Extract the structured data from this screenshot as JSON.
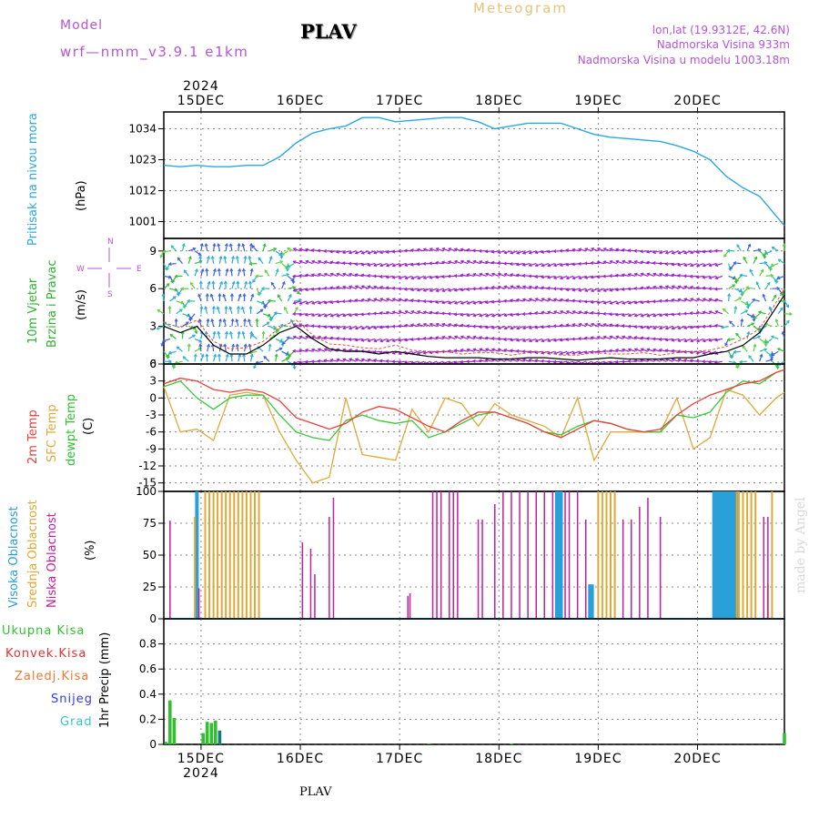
{
  "header": {
    "model_label": "Model",
    "model_run": "wrf—nmm_v3.9.1  e1km",
    "title": "PLAV",
    "meteogram": "Meteogram",
    "lonlat": "lon,lat (19.9312E, 42.6N)",
    "elevation": "Nadmorska Visina 933m",
    "model_elevation": "Nadmorska Visina u modelu 1003.18m"
  },
  "footer_title": "PLAV",
  "watermark": "made by Angel",
  "x_axis": {
    "year": "2024",
    "days": [
      "15DEC",
      "16DEC",
      "17DEC",
      "18DEC",
      "19DEC",
      "20DEC"
    ]
  },
  "panel_labels": {
    "pressure": [
      "Pritisak na nivou mora",
      "(hPa)"
    ],
    "wind": [
      "10m Vjetar",
      "Brzina i Pravac",
      "(m/s)"
    ],
    "compass": [
      "N",
      "W",
      "E",
      "S"
    ],
    "temp": [
      "2m Temp",
      "SFC Temp",
      "dewpt Temp",
      "(C)"
    ],
    "cloud": [
      "Visoka Oblacnost",
      "Srednja Oblacnost",
      "Niska Oblacnost",
      "(%)"
    ],
    "precip_axis": "1hr Precip (mm)",
    "precip_legend": [
      "Ukupna Kisa",
      "Konvek.Kisa",
      "Zaledj.Kisa",
      "Snijeg",
      "Grad"
    ]
  },
  "colors": {
    "pressure": "#2aa8e0",
    "t2m": "#e8403a",
    "tsfc": "#e0a838",
    "dewpt": "#3ac83a",
    "cloud_high": "#2aa0d8",
    "cloud_mid": "#e0a838",
    "cloud_low": "#c020a0",
    "rain_total": "#30c030",
    "rain_conv": "#e83030",
    "freezing_rain": "#f07830",
    "snow": "#3838e0",
    "hail": "#30c8c8"
  },
  "chart_data": [
    {
      "type": "line",
      "name": "pressure",
      "ylim": [
        995,
        1040
      ],
      "yticks": [
        1001,
        1012,
        1023,
        1034
      ],
      "x_hours": [
        0,
        4,
        8,
        12,
        16,
        20,
        24,
        28,
        32,
        36,
        40,
        44,
        48,
        52,
        56,
        60,
        64,
        68,
        72,
        76,
        80,
        84,
        88,
        92,
        96,
        100,
        104,
        108,
        112,
        116,
        120,
        124,
        128,
        132,
        136,
        140,
        144,
        148,
        150
      ],
      "values": [
        1021,
        1020.5,
        1021,
        1020.5,
        1020.5,
        1021,
        1021,
        1024,
        1029,
        1032.5,
        1034,
        1035,
        1038,
        1038,
        1036.5,
        1037,
        1037.5,
        1038,
        1038,
        1036.5,
        1034,
        1035,
        1036,
        1036,
        1036,
        1034,
        1032,
        1031,
        1030.5,
        1030,
        1029.5,
        1028,
        1026,
        1023,
        1017,
        1013,
        1010,
        1003,
        999.5
      ]
    },
    {
      "type": "line",
      "name": "wind_speed",
      "ylim": [
        0,
        10
      ],
      "yticks": [
        0,
        3,
        6,
        9
      ],
      "x_hours": [
        0,
        4,
        8,
        12,
        16,
        20,
        24,
        28,
        32,
        36,
        40,
        44,
        48,
        52,
        56,
        60,
        64,
        68,
        72,
        76,
        80,
        84,
        88,
        92,
        96,
        100,
        104,
        108,
        112,
        116,
        120,
        124,
        128,
        132,
        136,
        140,
        144,
        148,
        150
      ],
      "values": [
        3.0,
        2.5,
        3.0,
        1.5,
        0.8,
        0.8,
        1.5,
        2.5,
        3.0,
        2.0,
        1.2,
        1.0,
        1.0,
        0.8,
        1.0,
        0.8,
        0.6,
        0.5,
        0.5,
        0.5,
        0.4,
        0.4,
        0.5,
        0.5,
        0.4,
        0.3,
        0.4,
        0.5,
        0.4,
        0.4,
        0.4,
        0.5,
        0.5,
        0.8,
        1.0,
        1.5,
        2.5,
        4.5,
        5.5
      ]
    },
    {
      "type": "line",
      "name": "temperature",
      "ylim": [
        -16.5,
        6
      ],
      "yticks": [
        6,
        3,
        0,
        -3,
        -6,
        -9,
        -12,
        -15
      ],
      "x_hours": [
        0,
        4,
        8,
        12,
        16,
        20,
        24,
        28,
        32,
        36,
        40,
        44,
        48,
        52,
        56,
        60,
        64,
        68,
        72,
        76,
        80,
        84,
        88,
        92,
        96,
        100,
        104,
        108,
        112,
        116,
        120,
        124,
        128,
        132,
        136,
        140,
        144,
        148,
        150
      ],
      "series": [
        {
          "name": "2m Temp",
          "values": [
            2.5,
            3.5,
            3.0,
            1.5,
            1.0,
            1.5,
            1.0,
            -0.5,
            -3.5,
            -4.5,
            -5.5,
            -4.5,
            -2.5,
            -1.5,
            -2.0,
            -3.5,
            -5.0,
            -6.0,
            -4.0,
            -2.5,
            -2.5,
            -3.5,
            -4.5,
            -6.0,
            -7.0,
            -5.5,
            -4.0,
            -4.5,
            -5.5,
            -6.0,
            -5.5,
            -3.0,
            -1.0,
            0.5,
            1.5,
            2.5,
            3.0,
            4.5,
            5.0
          ]
        },
        {
          "name": "SFC Temp",
          "values": [
            2.0,
            -6.0,
            -5.5,
            -7.5,
            0.5,
            1.0,
            0.5,
            -6.0,
            -11.0,
            -15.0,
            -14.0,
            0.0,
            -10.0,
            -10.5,
            -11.0,
            -2.0,
            -6.0,
            0.0,
            -1.0,
            -5.0,
            -1.0,
            -3.0,
            -4.0,
            -5.0,
            -7.0,
            0.0,
            -11.0,
            -6.0,
            -6.0,
            -6.0,
            -6.0,
            0.0,
            -9.0,
            -7.0,
            1.5,
            0.5,
            -3.0,
            0.0,
            1.0
          ]
        },
        {
          "name": "dewpt Temp",
          "values": [
            2.0,
            3.0,
            0.0,
            -2.0,
            0.0,
            0.5,
            0.5,
            -3.0,
            -6.0,
            -7.0,
            -7.5,
            -4.0,
            -3.0,
            -4.0,
            -4.5,
            -4.0,
            -7.0,
            -6.0,
            -4.5,
            -3.0,
            -2.5,
            -3.5,
            -4.5,
            -6.0,
            -6.5,
            -5.0,
            -4.0,
            -4.5,
            -5.5,
            -6.0,
            -6.0,
            -3.0,
            -3.5,
            -2.5,
            1.0,
            3.0,
            2.5,
            4.5,
            5.0
          ]
        }
      ]
    },
    {
      "type": "bar",
      "name": "cloud_cover",
      "ylim": [
        0,
        100
      ],
      "yticks": [
        0,
        25,
        50,
        75,
        100
      ],
      "series": [
        {
          "name": "Visoka Oblacnost",
          "x_hours": [
            8,
            40,
            95,
            95.5,
            96,
            103,
            103.5,
            133,
            133.5,
            134,
            134.5,
            135,
            135.5,
            136,
            136.5,
            137,
            137.5,
            138,
            138.5
          ],
          "values": [
            100,
            0,
            100,
            100,
            100,
            27,
            27,
            100,
            100,
            100,
            100,
            100,
            100,
            100,
            100,
            100,
            100,
            100,
            100
          ]
        },
        {
          "name": "Srednja Oblacnost",
          "x_hours": [
            7.5,
            10,
            11,
            12,
            13,
            14,
            15,
            16,
            17,
            18,
            19,
            20,
            21,
            22,
            23,
            105,
            106,
            107,
            108,
            109,
            138.5,
            139,
            140,
            141,
            142,
            143,
            146,
            147
          ],
          "values": [
            80,
            100,
            100,
            100,
            100,
            100,
            100,
            100,
            100,
            100,
            100,
            100,
            100,
            100,
            100,
            100,
            100,
            100,
            100,
            100,
            100,
            100,
            100,
            100,
            100,
            100,
            27,
            100
          ]
        },
        {
          "name": "Niska Oblacnost",
          "x_hours": [
            1.5,
            8.5,
            33.5,
            35.5,
            36.5,
            40,
            41,
            59,
            59.5,
            65,
            66,
            67,
            69,
            70,
            71,
            76,
            77,
            80,
            82,
            84,
            86,
            88,
            90,
            92,
            94,
            97,
            98,
            100,
            102,
            111,
            113,
            115,
            117,
            120,
            145,
            146
          ],
          "values": [
            77,
            24,
            60,
            55,
            35,
            80,
            95,
            18,
            20,
            100,
            100,
            100,
            100,
            100,
            100,
            78,
            78,
            90,
            100,
            100,
            100,
            100,
            100,
            100,
            100,
            100,
            100,
            100,
            78,
            78,
            78,
            88,
            95,
            80,
            80,
            80
          ]
        }
      ]
    },
    {
      "type": "bar",
      "name": "precipitation_1hr",
      "ylim": [
        0,
        1.0
      ],
      "yticks": [
        0,
        0.2,
        0.4,
        0.6,
        0.8
      ],
      "series": [
        {
          "name": "Ukupna Kisa",
          "x_hours": [
            0.5,
            1.5,
            2.5,
            9.5,
            10.5,
            11.5,
            12.5,
            64,
            84,
            150
          ],
          "values": [
            0.02,
            0.35,
            0.21,
            0.09,
            0.18,
            0.17,
            0.19,
            0.005,
            0.005,
            0.09
          ]
        },
        {
          "name": "Grad",
          "x_hours": [
            13.5
          ],
          "values": [
            0.11
          ]
        }
      ]
    }
  ]
}
